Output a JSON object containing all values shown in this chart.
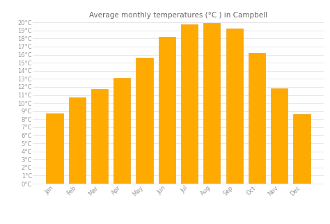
{
  "title": "Average monthly temperatures (°C ) in Campbell",
  "months": [
    "Jan",
    "Feb",
    "Mar",
    "Apr",
    "May",
    "Jun",
    "Jul",
    "Aug",
    "Sep",
    "Oct",
    "Nov",
    "Dec"
  ],
  "values": [
    8.7,
    10.7,
    11.7,
    13.1,
    15.6,
    18.2,
    19.8,
    19.9,
    19.2,
    16.2,
    11.8,
    8.6
  ],
  "bar_color": "#FFAA00",
  "bar_edge_color": "#E89400",
  "background_color": "#FFFFFF",
  "plot_bg_color": "#FFFFFF",
  "grid_color": "#DDDDDD",
  "ylim": [
    0,
    20
  ],
  "title_fontsize": 7.5,
  "tick_fontsize": 6.0,
  "axis_label_color": "#999999",
  "title_color": "#666666"
}
